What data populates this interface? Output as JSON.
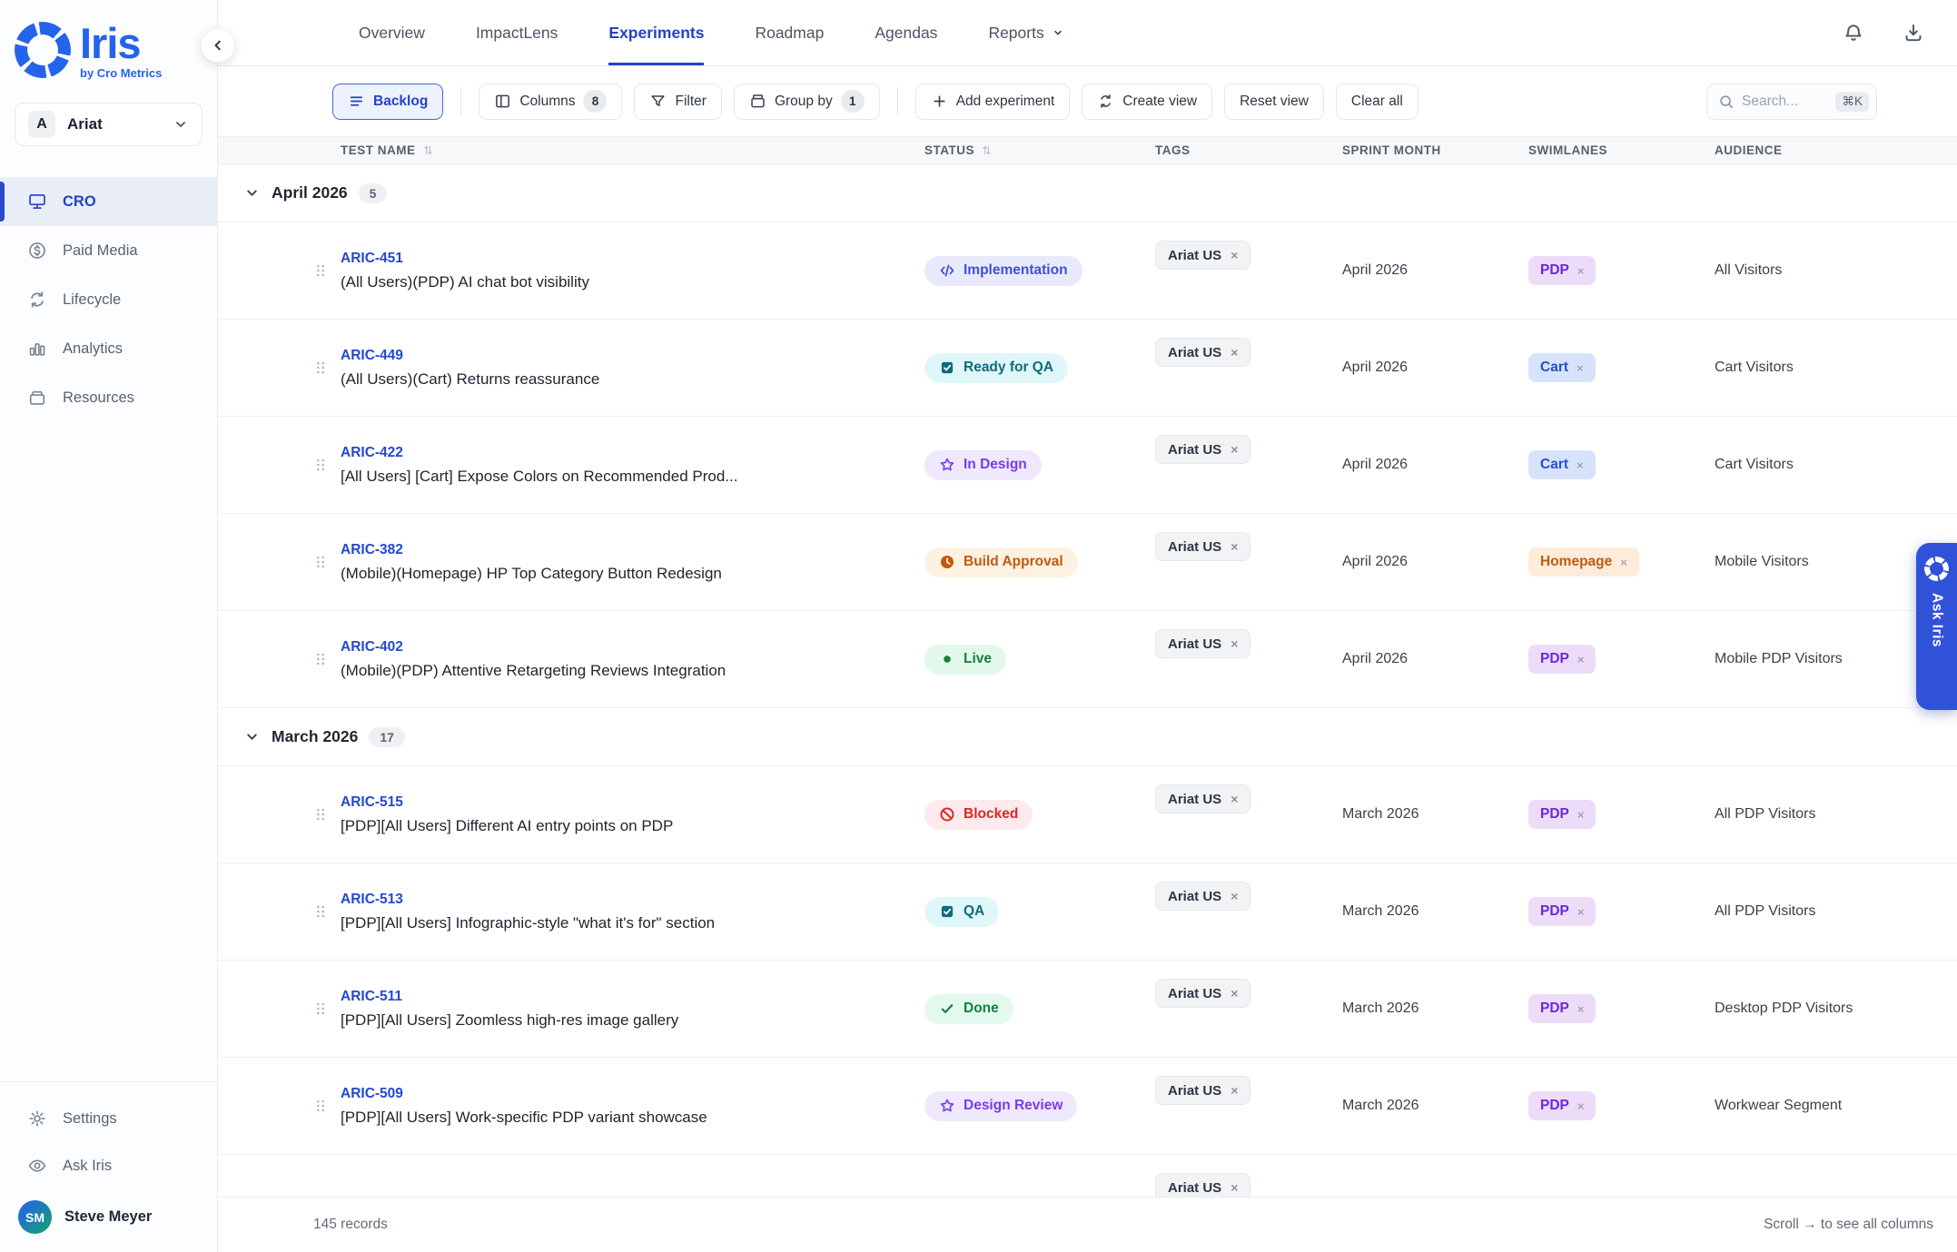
{
  "brand": {
    "name": "Iris",
    "tagline": "by Cro Metrics"
  },
  "client": {
    "initial": "A",
    "name": "Ariat"
  },
  "sidebar": {
    "items": [
      {
        "label": "CRO",
        "icon": "monitor",
        "active": true
      },
      {
        "label": "Paid Media",
        "icon": "dollar",
        "active": false
      },
      {
        "label": "Lifecycle",
        "icon": "cycle",
        "active": false
      },
      {
        "label": "Analytics",
        "icon": "bar-chart",
        "active": false
      },
      {
        "label": "Resources",
        "icon": "archive",
        "active": false
      }
    ],
    "footer_items": [
      {
        "label": "Settings",
        "icon": "gear"
      },
      {
        "label": "Ask Iris",
        "icon": "eye"
      }
    ],
    "user": {
      "initials": "SM",
      "name": "Steve Meyer"
    }
  },
  "topnav": {
    "tabs": [
      {
        "label": "Overview",
        "active": false,
        "has_dropdown": false
      },
      {
        "label": "ImpactLens",
        "active": false,
        "has_dropdown": false
      },
      {
        "label": "Experiments",
        "active": true,
        "has_dropdown": false
      },
      {
        "label": "Roadmap",
        "active": false,
        "has_dropdown": false
      },
      {
        "label": "Agendas",
        "active": false,
        "has_dropdown": false
      },
      {
        "label": "Reports",
        "active": false,
        "has_dropdown": true
      }
    ]
  },
  "toolbar": {
    "backlog_label": "Backlog",
    "columns_label": "Columns",
    "columns_count": "8",
    "filter_label": "Filter",
    "groupby_label": "Group by",
    "groupby_count": "1",
    "add_label": "Add experiment",
    "createview_label": "Create view",
    "resetview_label": "Reset view",
    "clearall_label": "Clear all",
    "search_placeholder": "Search...",
    "search_shortcut": "⌘K"
  },
  "colors": {
    "accent": "#2443c4",
    "brand_blue": "#2563eb",
    "status": {
      "implementation": {
        "fg": "#3f4fd8",
        "bg": "#e8eafc",
        "icon": "code"
      },
      "ready_for_qa": {
        "fg": "#0e6b7e",
        "bg": "#dff7f9",
        "icon": "checkbox"
      },
      "in_design": {
        "fg": "#7c3aed",
        "bg": "#efe9fd",
        "icon": "star"
      },
      "build_approval": {
        "fg": "#c2590e",
        "bg": "#fdf2e2",
        "icon": "clock"
      },
      "live": {
        "fg": "#15803d",
        "bg": "#e2f8eb",
        "icon": "dot"
      },
      "blocked": {
        "fg": "#dc2626",
        "bg": "#fdeaec",
        "icon": "ban"
      },
      "qa": {
        "fg": "#0e6b7e",
        "bg": "#dff7f9",
        "icon": "checkbox"
      },
      "done": {
        "fg": "#15803d",
        "bg": "#e4f9ed",
        "icon": "check"
      },
      "design_review": {
        "fg": "#7c3aed",
        "bg": "#efe9fd",
        "icon": "star"
      }
    },
    "swimlane": {
      "PDP": {
        "fg": "#6d28d9",
        "bg": "#ecdcf8"
      },
      "Cart": {
        "fg": "#2450c8",
        "bg": "#d7e3fa"
      },
      "Homepage": {
        "fg": "#c2590e",
        "bg": "#fcecd9"
      }
    }
  },
  "table": {
    "columns": [
      "TEST NAME",
      "STATUS",
      "TAGS",
      "SPRINT MONTH",
      "SWIMLANES",
      "AUDIENCE"
    ],
    "groups": [
      {
        "label": "April 2026",
        "count": "5",
        "rows": [
          {
            "id": "ARIC-451",
            "title": "(All Users)(PDP) AI chat bot visibility",
            "status": {
              "label": "Implementation",
              "type": "implementation"
            },
            "tag": "Ariat US",
            "sprint": "April 2026",
            "swimlane": "PDP",
            "audience": "All Visitors"
          },
          {
            "id": "ARIC-449",
            "title": "(All Users)(Cart) Returns reassurance",
            "status": {
              "label": "Ready for QA",
              "type": "ready_for_qa"
            },
            "tag": "Ariat US",
            "sprint": "April 2026",
            "swimlane": "Cart",
            "audience": "Cart Visitors"
          },
          {
            "id": "ARIC-422",
            "title": "[All Users] [Cart] Expose Colors on Recommended Prod...",
            "status": {
              "label": "In Design",
              "type": "in_design"
            },
            "tag": "Ariat US",
            "sprint": "April 2026",
            "swimlane": "Cart",
            "audience": "Cart Visitors"
          },
          {
            "id": "ARIC-382",
            "title": "(Mobile)(Homepage) HP Top Category Button Redesign",
            "status": {
              "label": "Build Approval",
              "type": "build_approval"
            },
            "tag": "Ariat US",
            "sprint": "April 2026",
            "swimlane": "Homepage",
            "audience": "Mobile Visitors"
          },
          {
            "id": "ARIC-402",
            "title": "(Mobile)(PDP) Attentive Retargeting Reviews Integration",
            "status": {
              "label": "Live",
              "type": "live"
            },
            "tag": "Ariat US",
            "sprint": "April 2026",
            "swimlane": "PDP",
            "audience": "Mobile PDP Visitors"
          }
        ]
      },
      {
        "label": "March 2026",
        "count": "17",
        "rows": [
          {
            "id": "ARIC-515",
            "title": "[PDP][All Users] Different AI entry points on PDP",
            "status": {
              "label": "Blocked",
              "type": "blocked"
            },
            "tag": "Ariat US",
            "sprint": "March 2026",
            "swimlane": "PDP",
            "audience": "All PDP Visitors"
          },
          {
            "id": "ARIC-513",
            "title": "[PDP][All Users] Infographic-style \"what it's for\" section",
            "status": {
              "label": "QA",
              "type": "qa"
            },
            "tag": "Ariat US",
            "sprint": "March 2026",
            "swimlane": "PDP",
            "audience": "All PDP Visitors"
          },
          {
            "id": "ARIC-511",
            "title": "[PDP][All Users] Zoomless high-res image gallery",
            "status": {
              "label": "Done",
              "type": "done"
            },
            "tag": "Ariat US",
            "sprint": "March 2026",
            "swimlane": "PDP",
            "audience": "Desktop PDP Visitors"
          },
          {
            "id": "ARIC-509",
            "title": "[PDP][All Users] Work-specific PDP variant showcase",
            "status": {
              "label": "Design Review",
              "type": "design_review"
            },
            "tag": "Ariat US",
            "sprint": "March 2026",
            "swimlane": "PDP",
            "audience": "Workwear Segment"
          },
          {
            "partial": true,
            "tag": "Ariat US"
          }
        ]
      }
    ],
    "footer": {
      "records": "145 records",
      "scroll_hint": "Scroll → to see all columns"
    }
  },
  "ask_iris": {
    "label": "Ask Iris"
  }
}
